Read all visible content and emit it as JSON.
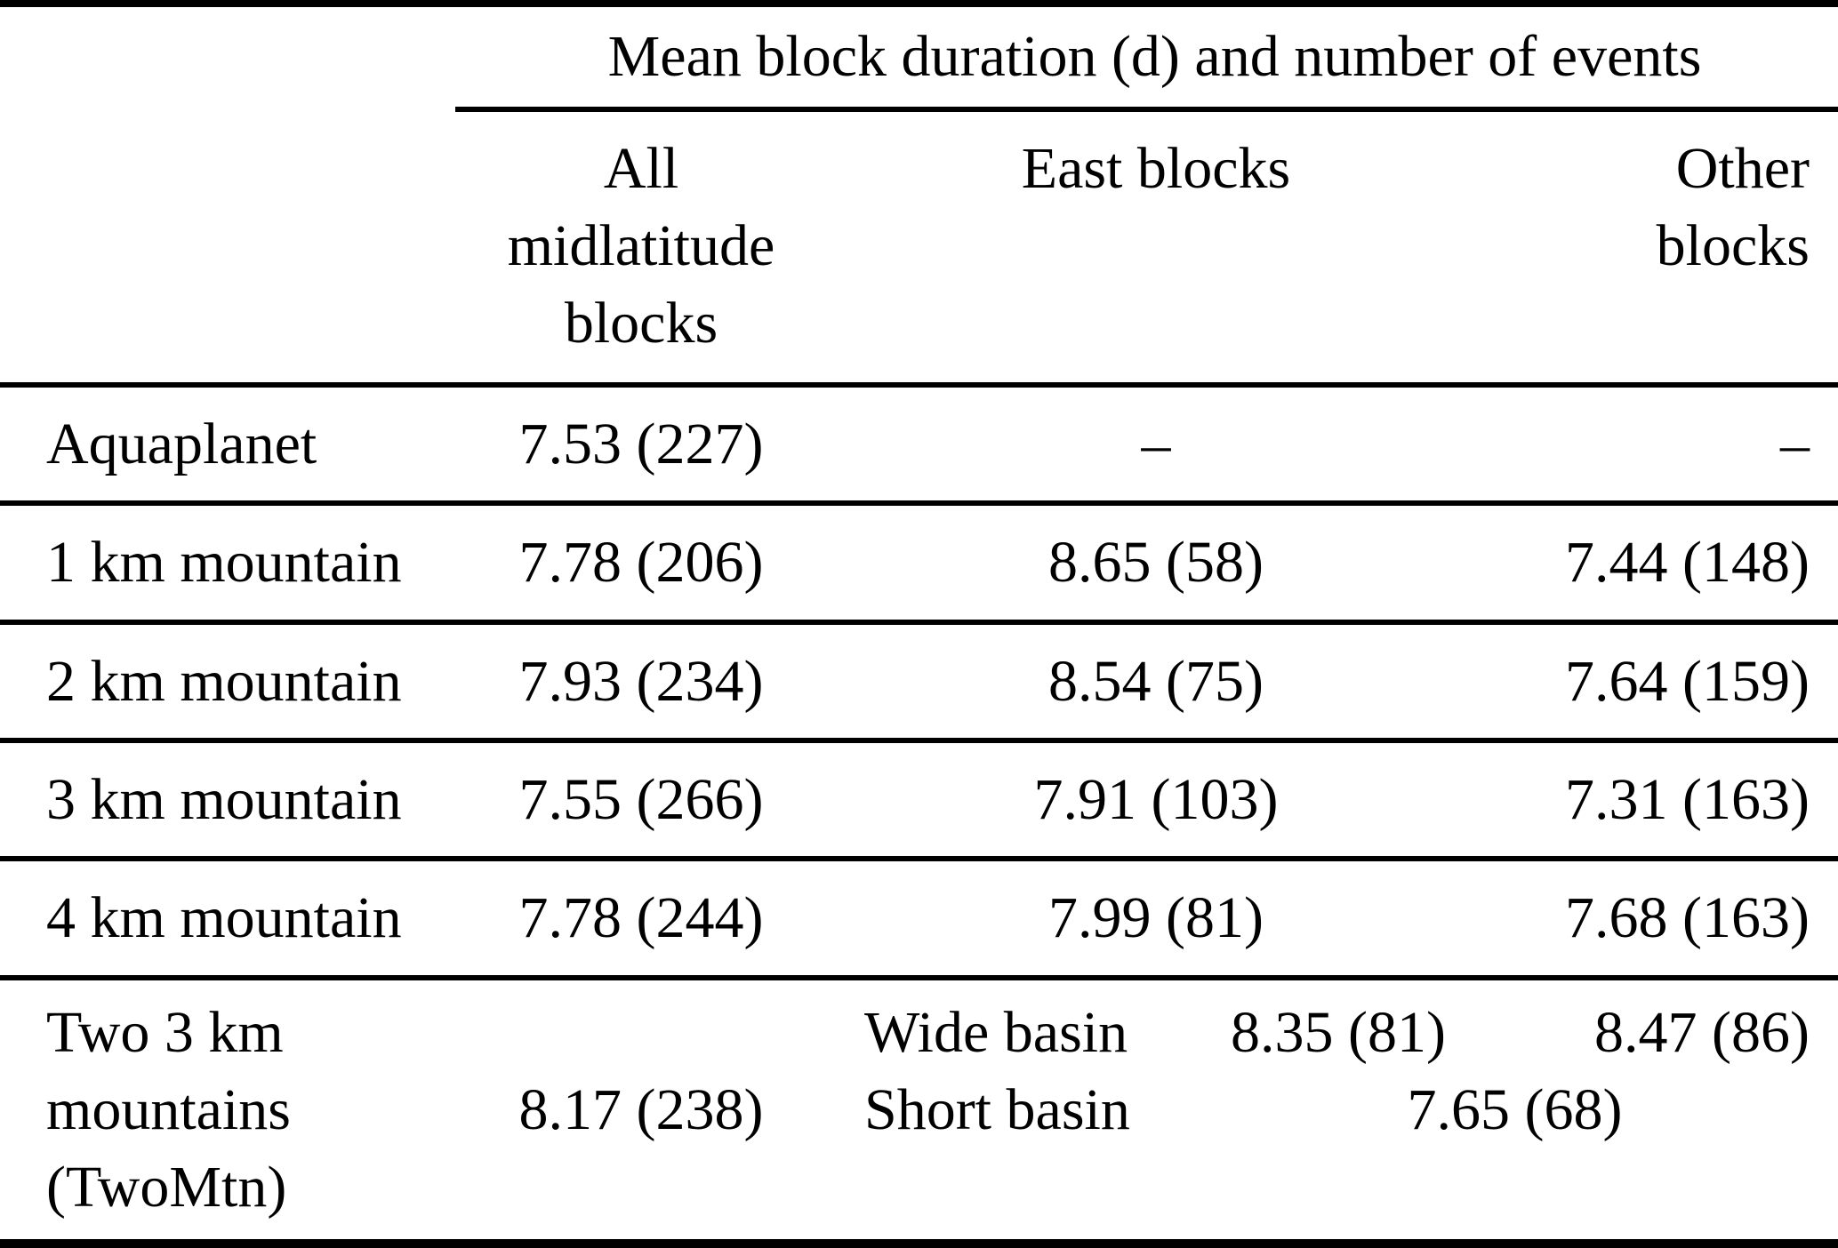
{
  "table": {
    "span_header": "Mean block duration (d) and number of events",
    "columns": [
      {
        "label_lines": [
          "All",
          "midlatitude",
          "blocks"
        ]
      },
      {
        "label_lines": [
          "East blocks"
        ]
      },
      {
        "label_lines": [
          "Other",
          "blocks"
        ]
      }
    ],
    "rows": [
      {
        "label": "Aquaplanet",
        "all": "7.53 (227)",
        "east": "–",
        "other": "–"
      },
      {
        "label": "1 km mountain",
        "all": "7.78 (206)",
        "east": "8.65 (58)",
        "other": "7.44 (148)"
      },
      {
        "label": "2 km mountain",
        "all": "7.93 (234)",
        "east": "8.54 (75)",
        "other": "7.64 (159)"
      },
      {
        "label": "3 km mountain",
        "all": "7.55 (266)",
        "east": "7.91 (103)",
        "other": "7.31 (163)"
      },
      {
        "label": "4 km mountain",
        "all": "7.78 (244)",
        "east": "7.99 (81)",
        "other": "7.68 (163)"
      }
    ],
    "last_row": {
      "label_lines": [
        "Two 3 km",
        "mountains",
        "(TwoMtn)"
      ],
      "all": "8.17 (238)",
      "sub_rows": [
        {
          "label": "Wide basin",
          "east": "8.35 (81)",
          "other": "8.47 (86)"
        },
        {
          "label": "Short basin",
          "combined": "7.65 (68)"
        }
      ]
    }
  }
}
